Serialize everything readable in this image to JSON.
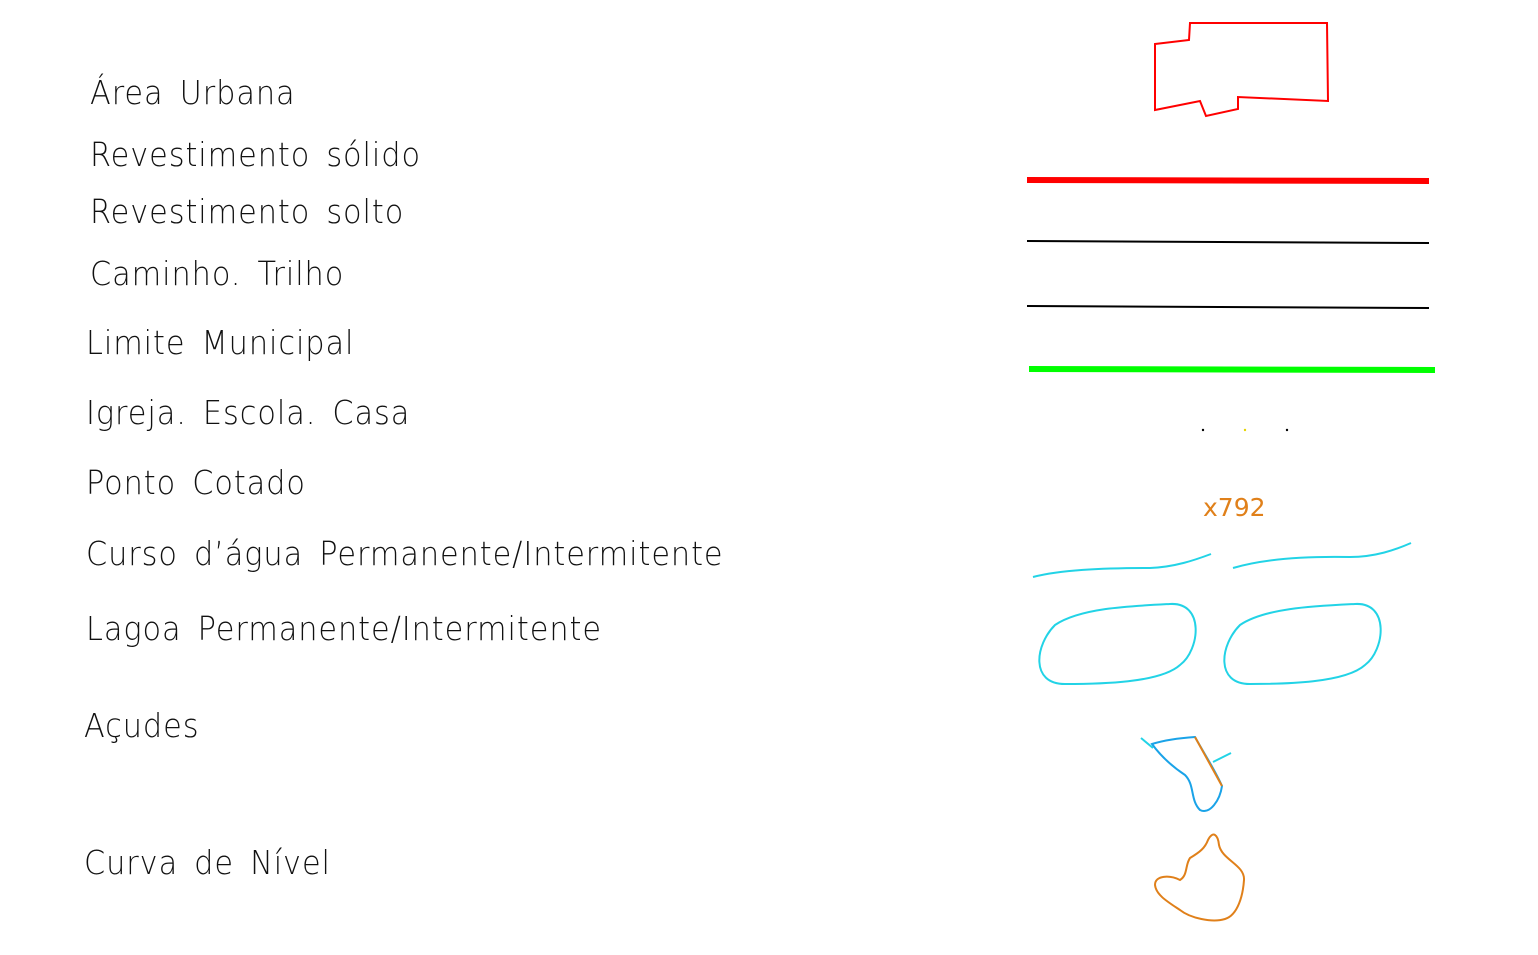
{
  "legend": {
    "items": [
      {
        "label": "Área  Urbana",
        "color": "#ff0000"
      },
      {
        "label": "Revestimento  sólido",
        "color": "#ff0000"
      },
      {
        "label": "Revestimento  solto",
        "color": "#000000"
      },
      {
        "label": "Caminho.  Trilho",
        "color": "#000000"
      },
      {
        "label": "Limite  Municipal",
        "color": "#00ff00"
      },
      {
        "label": "Igreja.  Escola.  Casa",
        "color": "#000000"
      },
      {
        "label": "Ponto  Cotado",
        "color": "#e0801a"
      },
      {
        "label": "Curso  d’água  Permanente/Intermitente",
        "color": "#22d3e6"
      },
      {
        "label": "Lagoa  Permanente/Intermitente",
        "color": "#22d3e6"
      },
      {
        "label": "Açudes",
        "color": "#1aa3e8"
      },
      {
        "label": "Curva  de  Nível",
        "color": "#e0801a"
      }
    ],
    "spot_height_label": "x792"
  }
}
